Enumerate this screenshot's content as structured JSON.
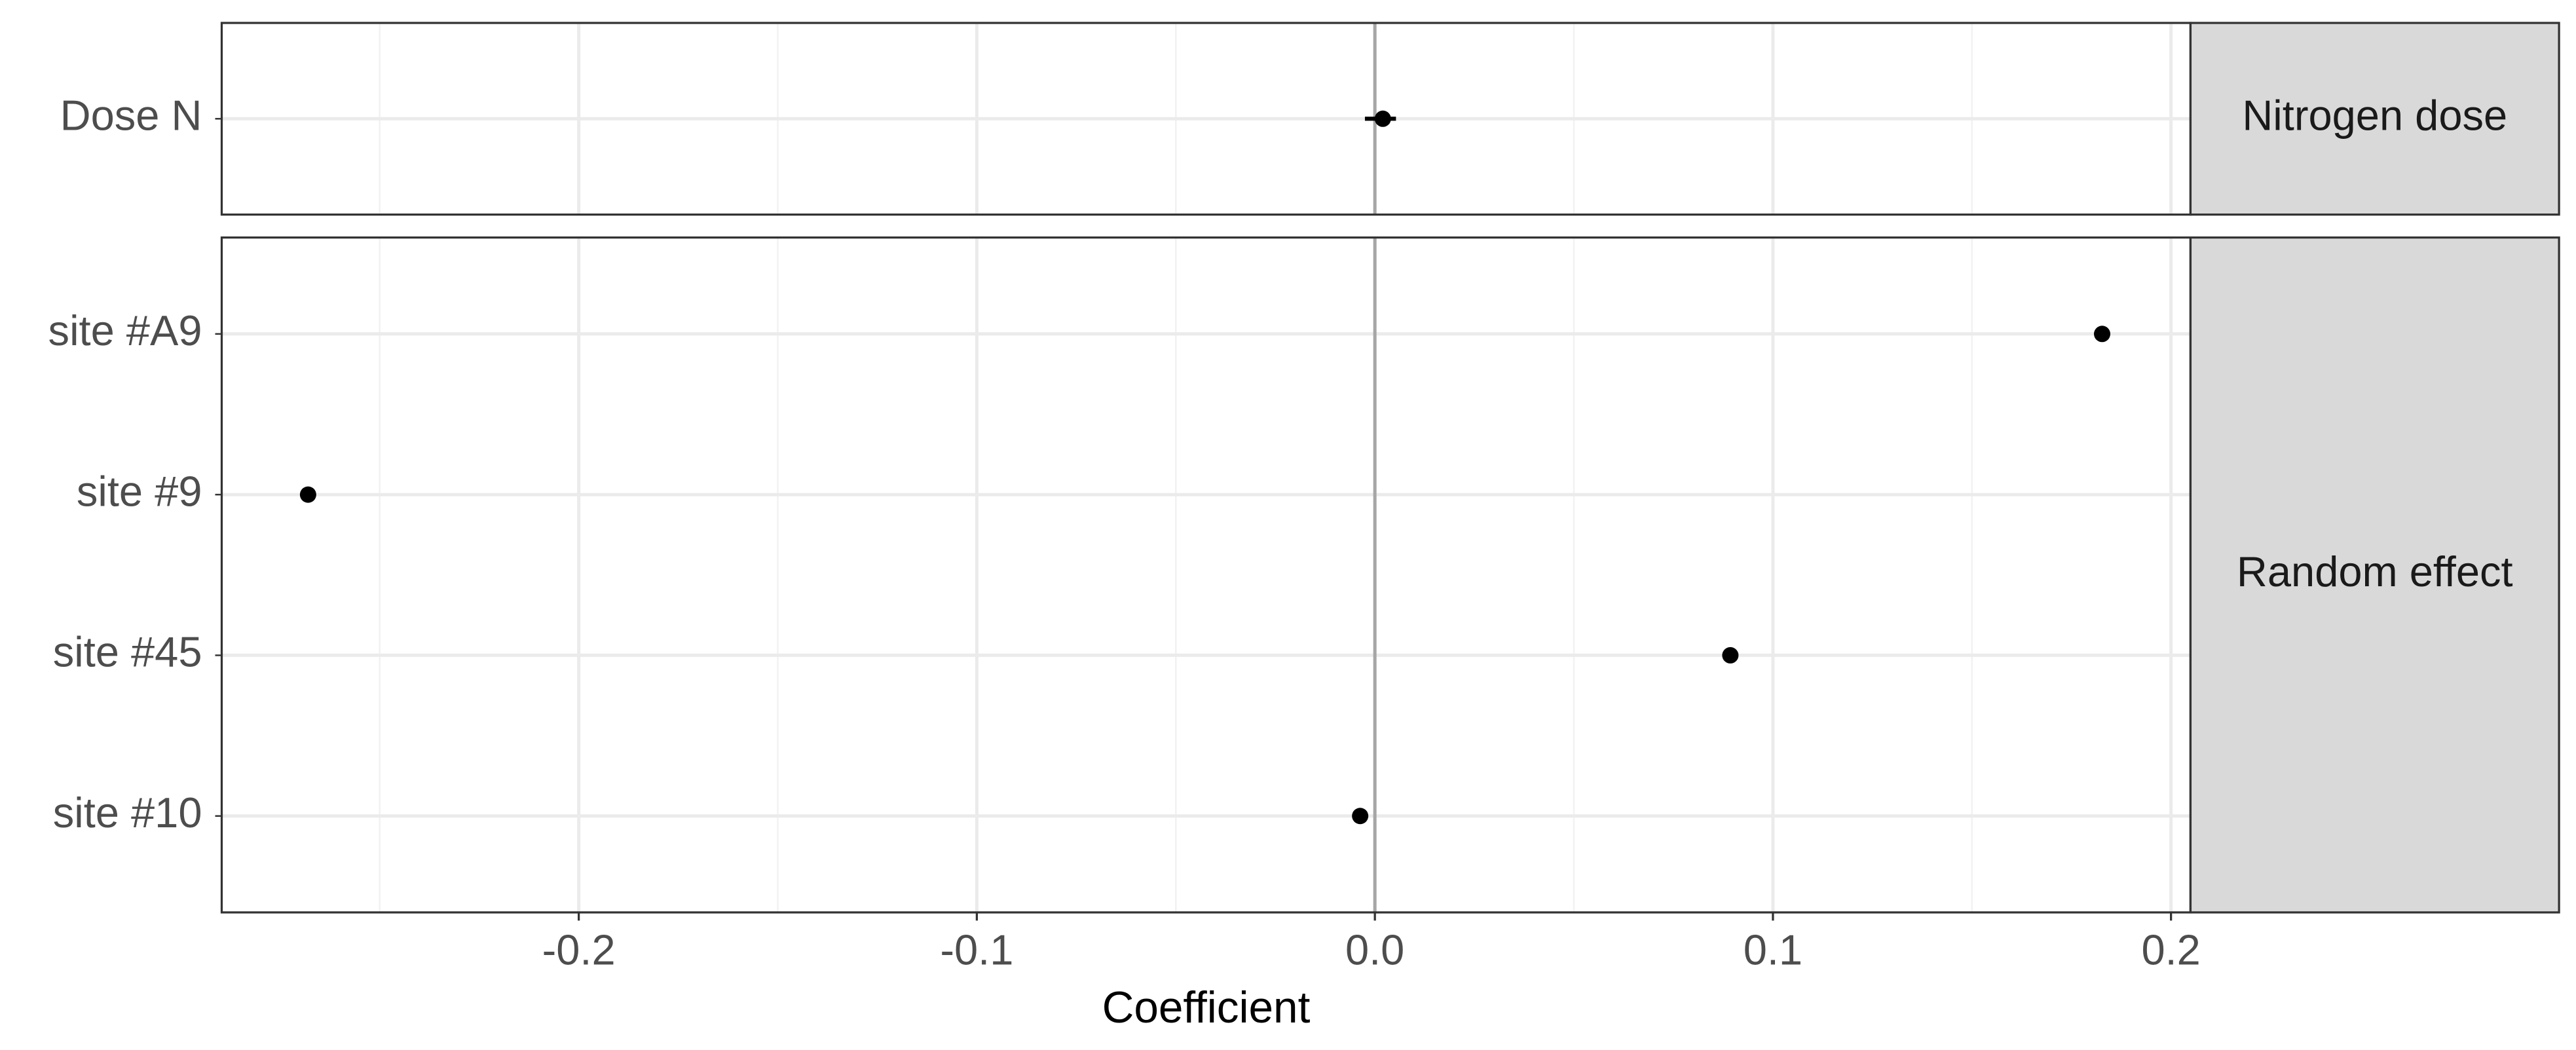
{
  "chart_data": {
    "type": "dot",
    "xlabel": "Coefficient",
    "xlim": [
      -0.2897,
      0.2049
    ],
    "xticks": [
      -0.2,
      -0.1,
      {
        "value": 0,
        "label": "0.0"
      },
      0.1,
      0.2
    ],
    "xminorticks": [
      -0.25,
      -0.15,
      -0.05,
      0.05,
      0.15
    ],
    "reference_line": 0,
    "grid": true,
    "color": "#000000",
    "panels": [
      {
        "strip": "Nitrogen dose",
        "categories": [
          "Dose N"
        ],
        "values": [
          0.002
        ],
        "lower": [
          -0.0025
        ],
        "upper": [
          0.0053
        ]
      },
      {
        "strip": "Random effect",
        "categories": [
          "site #A9",
          "site #9",
          "site #45",
          "site #10"
        ],
        "values": [
          0.1827,
          -0.268,
          0.0893,
          -0.0037
        ]
      }
    ]
  }
}
